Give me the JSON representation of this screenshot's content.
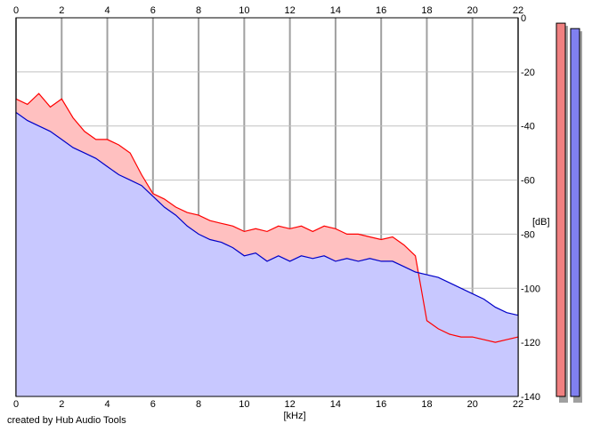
{
  "chart_data": {
    "type": "area",
    "xlabel": "[kHz]",
    "ylabel": "[dB]",
    "xlim": [
      0,
      22
    ],
    "ylim": [
      -140,
      0
    ],
    "x_ticks": [
      "0",
      "2",
      "4",
      "6",
      "8",
      "10",
      "12",
      "14",
      "16",
      "18",
      "20",
      "22"
    ],
    "y_ticks": [
      "0",
      "-20",
      "-40",
      "-60",
      "-80",
      "-100",
      "-120",
      "-140"
    ],
    "grid": true,
    "x": [
      0,
      0.5,
      1,
      1.5,
      2,
      2.5,
      3,
      3.5,
      4,
      4.5,
      5,
      5.5,
      6,
      6.5,
      7,
      7.5,
      8,
      8.5,
      9,
      9.5,
      10,
      10.5,
      11,
      11.5,
      12,
      12.5,
      13,
      13.5,
      14,
      14.5,
      15,
      15.5,
      16,
      16.5,
      17,
      17.5,
      18,
      18.5,
      19,
      19.5,
      20,
      20.5,
      21,
      21.5,
      22
    ],
    "series": [
      {
        "color": "#ff0000",
        "fill": "#ffc0c0",
        "values": [
          -30,
          -32,
          -28,
          -33,
          -30,
          -37,
          -42,
          -45,
          -45,
          -47,
          -50,
          -58,
          -65,
          -67,
          -70,
          -72,
          -73,
          -75,
          -76,
          -77,
          -79,
          -78,
          -79,
          -77,
          -78,
          -77,
          -79,
          -77,
          -78,
          -80,
          -80,
          -81,
          -82,
          -81,
          -84,
          -88,
          -112,
          -115,
          -117,
          -118,
          -118,
          -119,
          -120,
          -119,
          -118
        ]
      },
      {
        "color": "#0000c8",
        "fill": "#c8c8ff",
        "values": [
          -35,
          -38,
          -40,
          -42,
          -45,
          -48,
          -50,
          -52,
          -55,
          -58,
          -60,
          -62,
          -66,
          -70,
          -73,
          -77,
          -80,
          -82,
          -83,
          -85,
          -88,
          -87,
          -90,
          -88,
          -90,
          -88,
          -89,
          -88,
          -90,
          -89,
          -90,
          -89,
          -90,
          -90,
          -92,
          -94,
          -95,
          -96,
          -98,
          -100,
          -102,
          -104,
          -107,
          -109,
          -110
        ]
      }
    ],
    "level_meters": [
      {
        "color": "#f08080",
        "level_db": -2
      },
      {
        "color": "#8080f0",
        "level_db": -4
      }
    ]
  },
  "credit": "created by Hub Audio Tools"
}
